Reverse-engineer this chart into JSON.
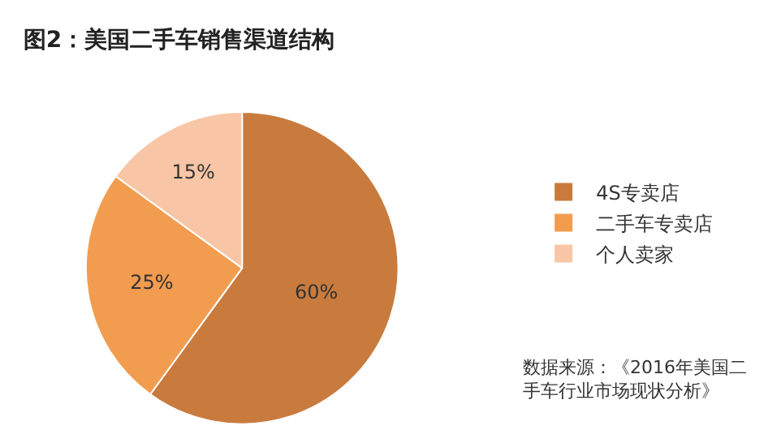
{
  "chart_data": {
    "type": "pie",
    "title": "图2：美国二手车销售渠道结构",
    "categories": [
      "4S专卖店",
      "二手车专卖店",
      "个人卖家"
    ],
    "values": [
      60,
      25,
      15
    ],
    "value_labels": [
      "60%",
      "25%",
      "15%"
    ],
    "colors": [
      "#c97b3e",
      "#f29c50",
      "#f8c6a6"
    ],
    "legend": "right",
    "annotations": [
      "数据来源：《2016年美国二手车行业市场现状分析》"
    ]
  }
}
